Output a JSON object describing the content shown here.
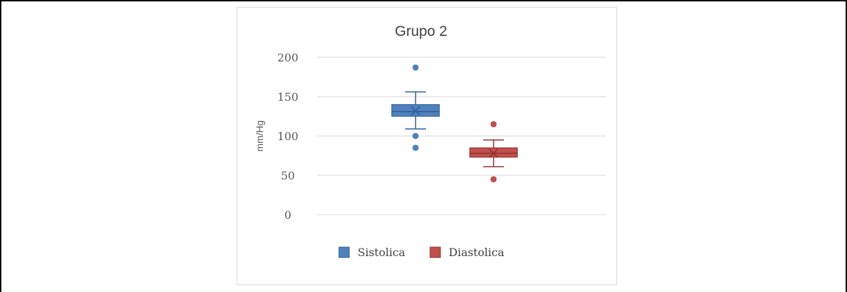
{
  "chart_data": {
    "type": "box",
    "title": "Grupo 2",
    "ylabel": "mm/Hg",
    "ylim": [
      0,
      200
    ],
    "yticks": [
      "0",
      "50",
      "100",
      "150",
      "200"
    ],
    "grid": true,
    "legend_position": "bottom",
    "series": [
      {
        "name": "Sistolica",
        "color": "#4f81bd",
        "edge": "#2e5d94",
        "whisker_low": 109,
        "q1": 125,
        "median": 131,
        "mean": 132,
        "q3": 140,
        "whisker_high": 156,
        "outliers": [
          187,
          100,
          85
        ]
      },
      {
        "name": "Diastolica",
        "color": "#c0504d",
        "edge": "#8f2f2c",
        "whisker_low": 61,
        "q1": 73,
        "median": 78,
        "mean": 78,
        "q3": 85,
        "whisker_high": 95,
        "outliers": [
          115,
          45
        ]
      }
    ]
  }
}
